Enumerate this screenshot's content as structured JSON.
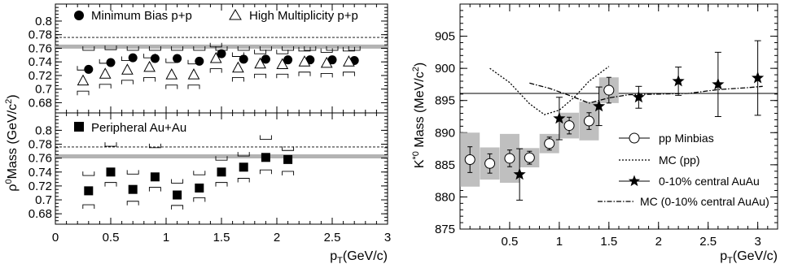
{
  "colors": {
    "band": "#b3b3b3",
    "box": "#bfbfbf",
    "ink": "#000000"
  },
  "chart_data": [
    {
      "type": "scatter",
      "panel": "left-top",
      "ylabel": "ρ⁰Mass (GeV/c²)",
      "xlim": [
        0,
        3
      ],
      "ylim": [
        0.665,
        0.825
      ],
      "yticks": [
        0.68,
        0.7,
        0.72,
        0.74,
        0.76,
        0.78,
        0.8
      ],
      "reference_dashed": 0.776,
      "reference_band": 0.7625,
      "legend": [
        {
          "marker": "filled-circle",
          "label": "Minimum Bias p+p"
        },
        {
          "marker": "open-triangle",
          "label": "High Multiplicity p+p"
        }
      ],
      "series": [
        {
          "name": "Minimum Bias p+p",
          "marker": "filled-circle",
          "x": [
            0.3,
            0.5,
            0.7,
            0.9,
            1.1,
            1.3,
            1.5,
            1.7,
            1.9,
            2.1,
            2.3,
            2.5,
            2.7
          ],
          "y": [
            0.729,
            0.739,
            0.746,
            0.745,
            0.745,
            0.741,
            0.752,
            0.744,
            0.744,
            0.743,
            0.743,
            0.743,
            0.742
          ],
          "syst": [
            0.757,
            0.758,
            0.757,
            0.757,
            0.757,
            0.757,
            0.757,
            0.757,
            0.757,
            0.757,
            0.757,
            0.757,
            0.757
          ]
        },
        {
          "name": "High Multiplicity p+p",
          "marker": "open-triangle",
          "x": [
            0.25,
            0.45,
            0.65,
            0.85,
            1.05,
            1.25,
            1.45,
            1.65,
            1.85,
            2.05,
            2.25,
            2.45,
            2.65
          ],
          "y": [
            0.712,
            0.722,
            0.728,
            0.732,
            0.721,
            0.721,
            0.745,
            0.731,
            0.737,
            0.736,
            0.74,
            0.738,
            0.74
          ],
          "syst_high": [
            0.728,
            0.738,
            0.742,
            0.746,
            0.739,
            0.737,
            0.762,
            0.748,
            0.752,
            0.752,
            0.756,
            0.754,
            0.756
          ],
          "syst_low": [
            0.697,
            0.707,
            0.713,
            0.717,
            0.706,
            0.706,
            0.73,
            0.717,
            0.722,
            0.722,
            0.725,
            0.723,
            0.725
          ]
        }
      ]
    },
    {
      "type": "scatter",
      "panel": "left-bottom",
      "xlabel": "p_T (GeV/c)",
      "xlim": [
        0,
        3
      ],
      "xticks": [
        0,
        0.5,
        1,
        1.5,
        2,
        2.5,
        3
      ],
      "ylim": [
        0.665,
        0.825
      ],
      "yticks": [
        0.68,
        0.7,
        0.72,
        0.74,
        0.76,
        0.78,
        0.8
      ],
      "reference_dashed": 0.776,
      "reference_band": 0.7625,
      "legend": [
        {
          "marker": "filled-square",
          "label": "Peripheral Au+Au"
        }
      ],
      "series": [
        {
          "name": "Peripheral Au+Au",
          "marker": "filled-square",
          "x": [
            0.3,
            0.5,
            0.7,
            0.9,
            1.1,
            1.3,
            1.5,
            1.7,
            1.9,
            2.1
          ],
          "y": [
            0.713,
            0.74,
            0.715,
            0.733,
            0.707,
            0.717,
            0.74,
            0.747,
            0.761,
            0.758
          ],
          "syst_high": [
            0.735,
            0.777,
            0.737,
            0.775,
            0.724,
            0.736,
            0.757,
            0.763,
            0.787,
            0.771
          ],
          "syst_low": [
            0.693,
            0.725,
            0.698,
            0.718,
            0.692,
            0.703,
            0.725,
            0.731,
            0.743,
            0.741
          ]
        }
      ]
    },
    {
      "type": "scatter",
      "panel": "right",
      "ylabel": "K*⁰ Mass (MeV/c²)",
      "xlabel": "p_T (GeV/c)",
      "xlim": [
        0,
        3.2
      ],
      "xticks": [
        0.5,
        1,
        1.5,
        2,
        2.5,
        3
      ],
      "ylim": [
        875,
        910
      ],
      "yticks": [
        875,
        880,
        885,
        890,
        895,
        900,
        905
      ],
      "reference_line": 896.1,
      "legend": [
        {
          "marker": "open-circle",
          "label": "pp Minbias"
        },
        {
          "marker": "dashed-line",
          "label": "MC (pp)"
        },
        {
          "marker": "star",
          "label": "0-10% central AuAu"
        },
        {
          "marker": "dash-dot-line",
          "label": "MC (0-10% central AuAu)"
        }
      ],
      "series": [
        {
          "name": "pp Minbias",
          "marker": "open-circle",
          "x": [
            0.1,
            0.3,
            0.5,
            0.7,
            0.9,
            1.1,
            1.3,
            1.5
          ],
          "y": [
            885.8,
            885.2,
            886.0,
            886.1,
            888.3,
            891.1,
            891.8,
            896.6
          ],
          "err": [
            2.0,
            1.5,
            1.3,
            1.0,
            1.0,
            1.3,
            1.3,
            2.0
          ],
          "syst": [
            4.2,
            2.5,
            3.8,
            1.5,
            1.5,
            2.0,
            3.0,
            2.0
          ]
        },
        {
          "name": "0-10% central AuAu",
          "marker": "star",
          "x": [
            0.6,
            1.0,
            1.4,
            1.8,
            2.2,
            2.6,
            3.0
          ],
          "y": [
            883.5,
            892.2,
            894.1,
            895.5,
            898.0,
            897.5,
            898.5
          ],
          "err": [
            4.0,
            3.3,
            3.0,
            1.7,
            2.2,
            5.0,
            5.8
          ]
        },
        {
          "name": "MC (pp)",
          "style": "dashed",
          "x": [
            0.3,
            0.5,
            0.7,
            0.85,
            1.0,
            1.15,
            1.3,
            1.5
          ],
          "y": [
            900.0,
            897.8,
            894.5,
            892.8,
            893.5,
            895.5,
            898.0,
            900.3
          ]
        },
        {
          "name": "MC (0-10% central AuAu)",
          "style": "dash-dot",
          "x": [
            0.7,
            0.9,
            1.1,
            1.3,
            1.5,
            1.7,
            2.0,
            2.3,
            2.6,
            2.9,
            3.05
          ],
          "y": [
            897.7,
            896.9,
            895.8,
            894.6,
            895.4,
            895.9,
            896.0,
            896.1,
            896.7,
            897.0,
            897.2
          ]
        }
      ]
    }
  ]
}
